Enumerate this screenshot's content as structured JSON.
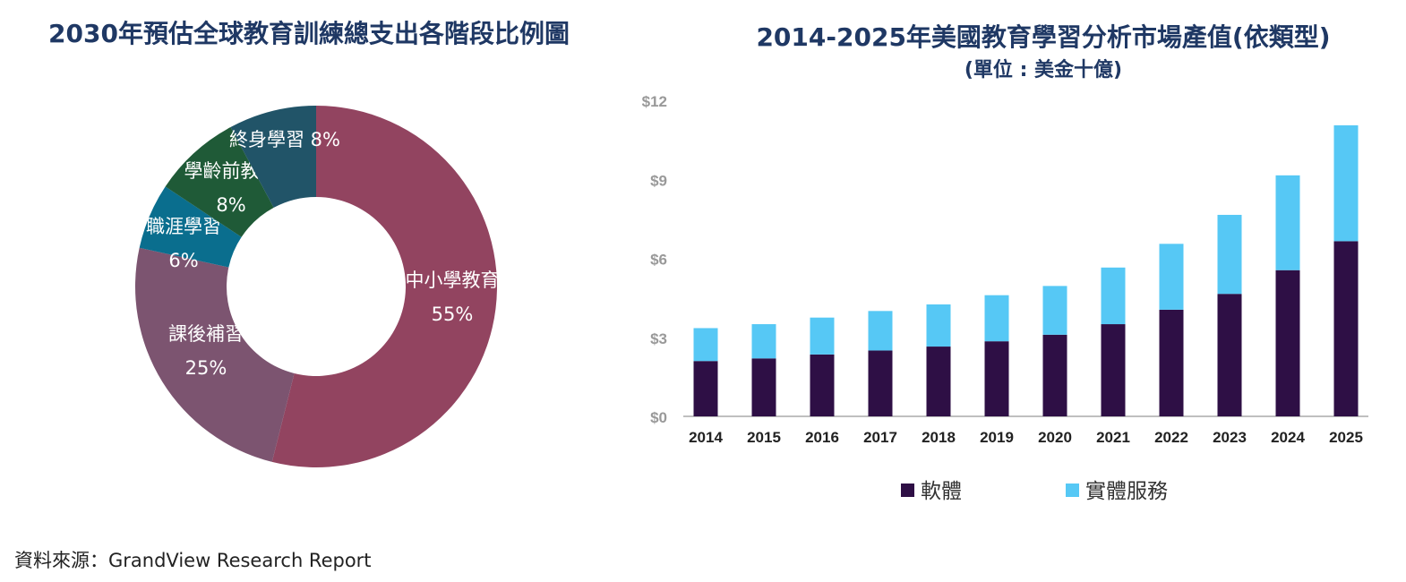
{
  "chart_data": [
    {
      "type": "pie",
      "title": "2030年預估全球教育訓練總支出各階段比例圖",
      "slices": [
        {
          "label": "中小學教育",
          "value": 55,
          "value_label": "55%",
          "color": "#924460"
        },
        {
          "label": "課後補習",
          "value": 25,
          "value_label": "25%",
          "color": "#7c5470"
        },
        {
          "label": "職涯學習",
          "value": 6,
          "value_label": "6%",
          "color": "#0a6e8e"
        },
        {
          "label": "學齡前教育",
          "value": 8,
          "value_label": "8%",
          "color": "#1f5a37"
        },
        {
          "label": "終身學習",
          "value": 8,
          "value_label": "8%",
          "color": "#215468"
        }
      ],
      "donut": true,
      "label_color": "#ffffff"
    },
    {
      "type": "bar",
      "stacked": true,
      "title": "2014-2025年美國教育學習分析市場產值(依類型)",
      "subtitle": "(單位 : 美金十億)",
      "categories": [
        "2014",
        "2015",
        "2016",
        "2017",
        "2018",
        "2019",
        "2020",
        "2021",
        "2022",
        "2023",
        "2024",
        "2025"
      ],
      "series": [
        {
          "name": "軟體",
          "color": "#2e0f45",
          "values": [
            2.1,
            2.2,
            2.35,
            2.5,
            2.65,
            2.85,
            3.1,
            3.5,
            4.05,
            4.65,
            5.55,
            6.65
          ]
        },
        {
          "name": "實體服務",
          "color": "#56c8f5",
          "values": [
            1.25,
            1.3,
            1.4,
            1.5,
            1.6,
            1.75,
            1.85,
            2.15,
            2.5,
            3.0,
            3.6,
            4.4
          ]
        }
      ],
      "ylim": [
        0,
        12
      ],
      "yticks": [
        0,
        3,
        6,
        9,
        12
      ],
      "ytick_labels": [
        "$0",
        "$3",
        "$6",
        "$9",
        "$12"
      ],
      "grid": false,
      "legend_position": "bottom"
    }
  ],
  "source": "資料來源：GrandView Research Report"
}
